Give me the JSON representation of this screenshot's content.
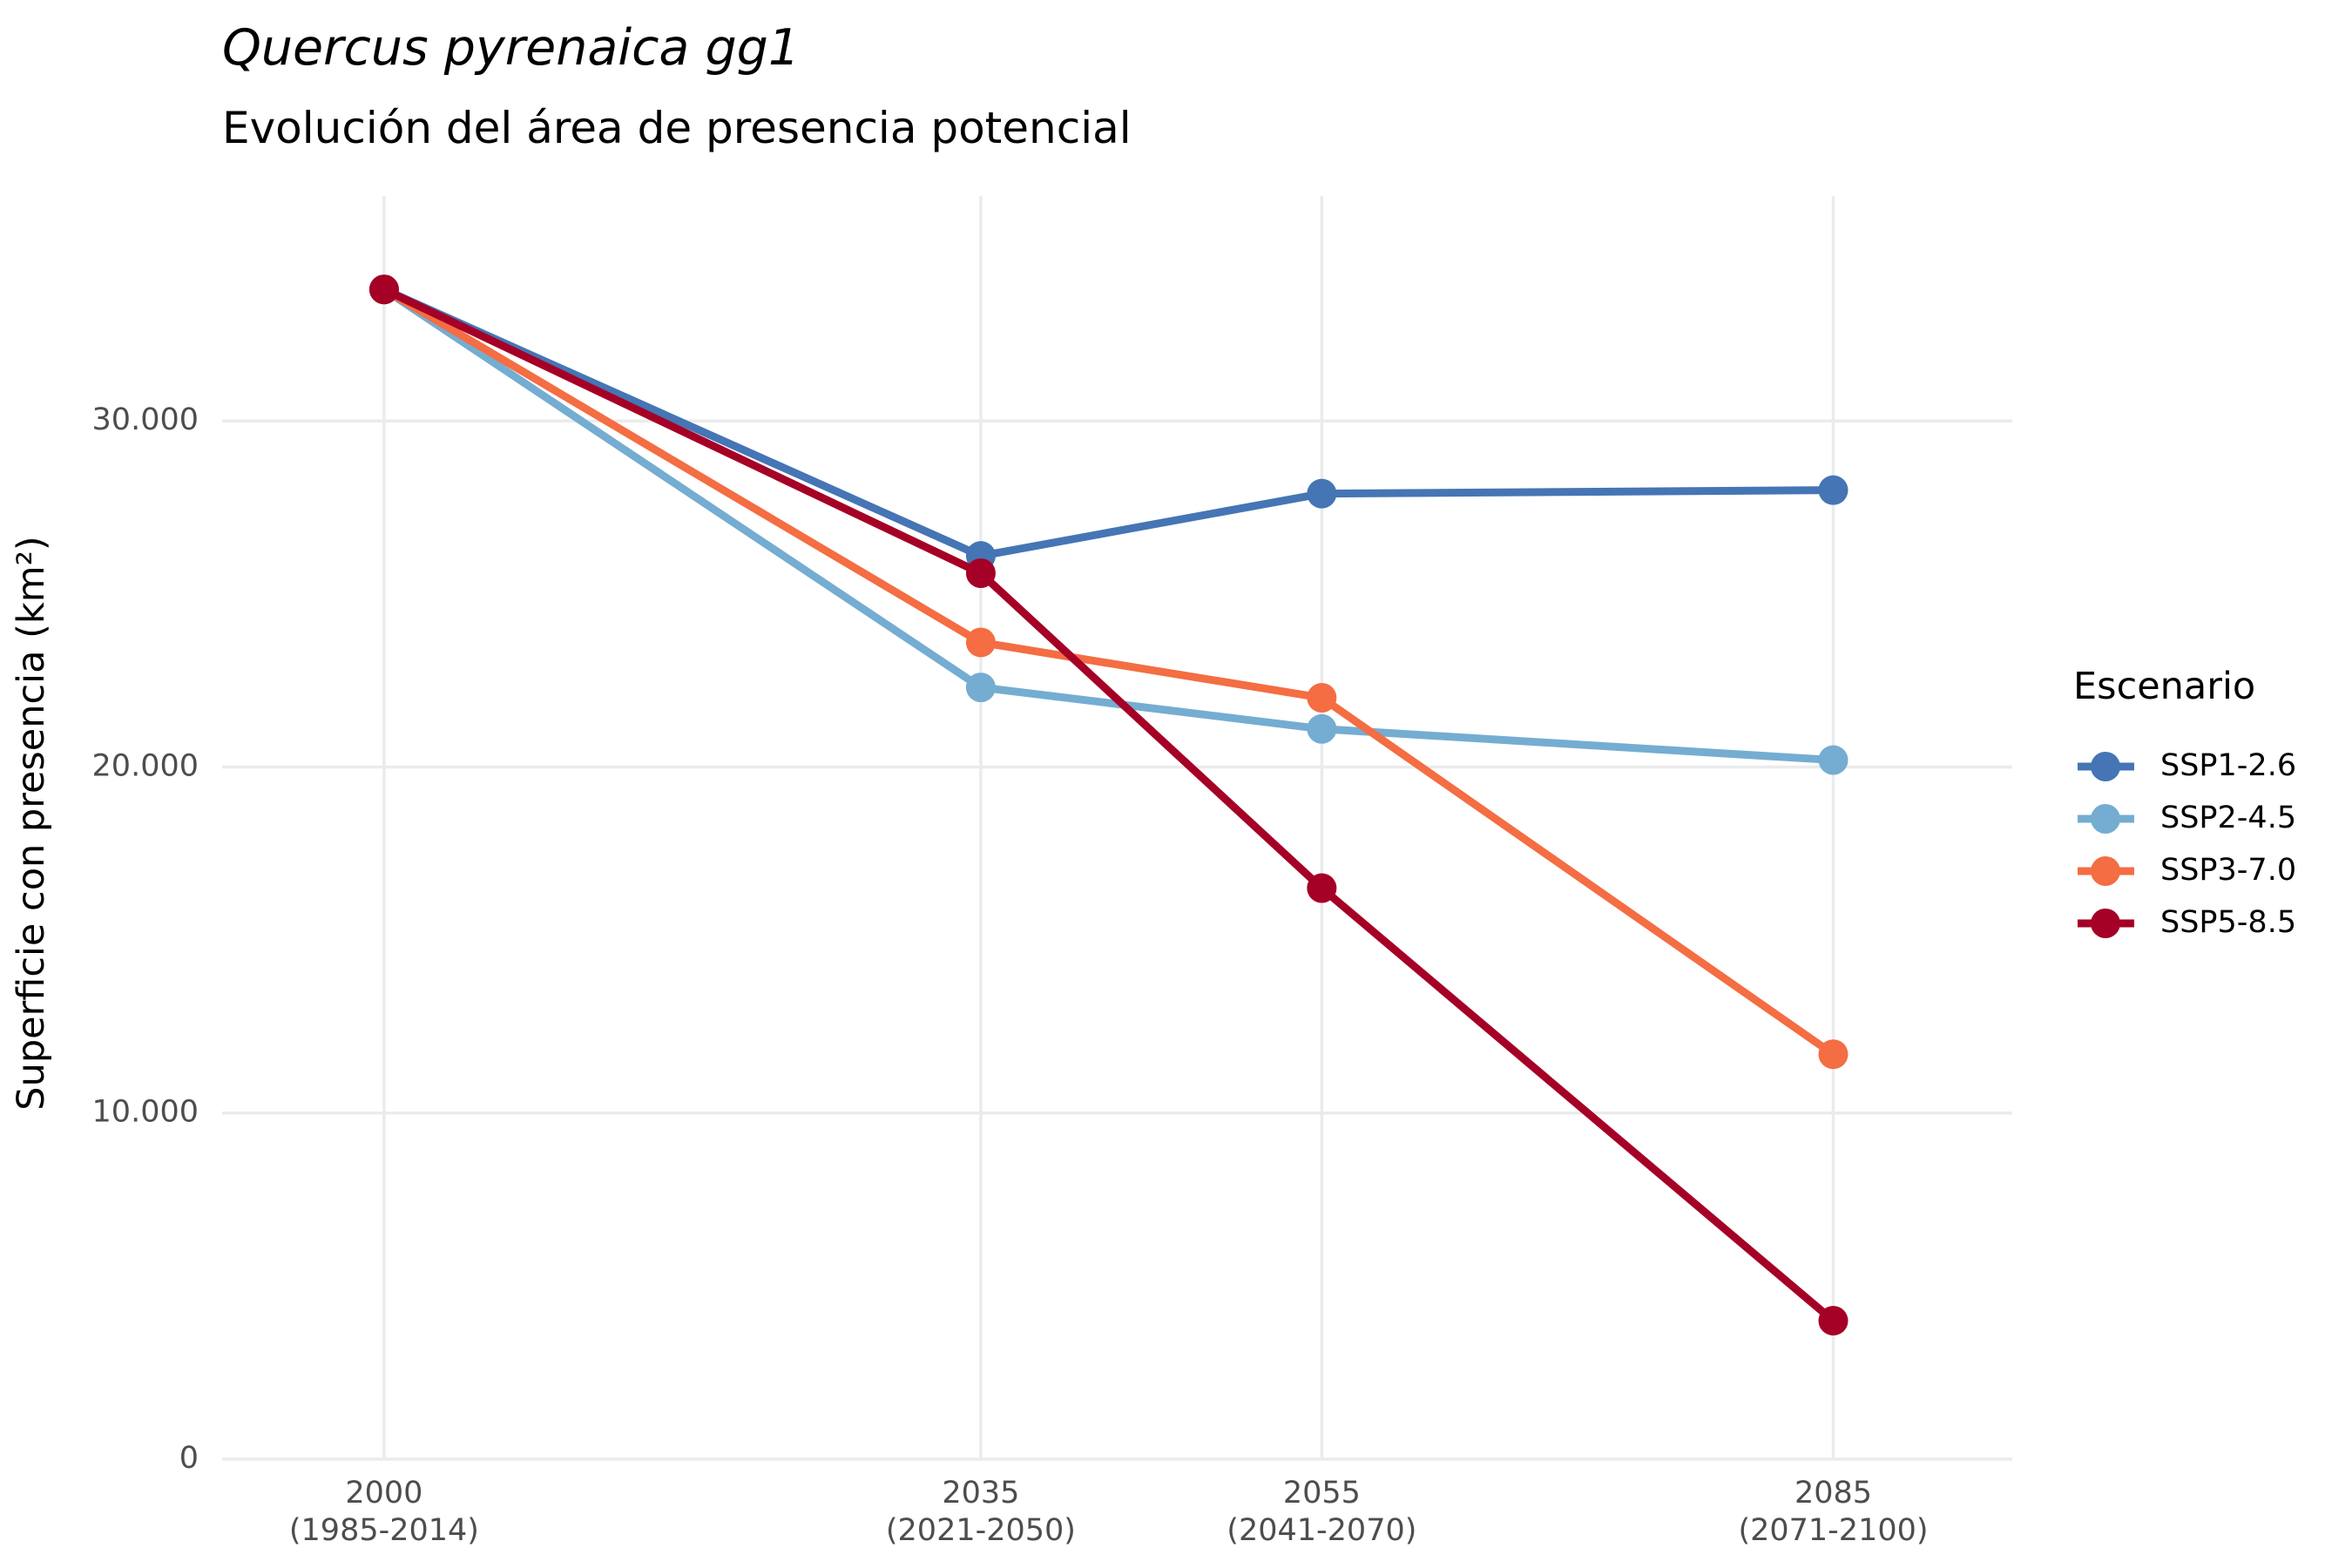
{
  "chart_data": {
    "type": "line",
    "title": "Quercus pyrenaica gg1",
    "subtitle": "Evolución del área de presencia potencial",
    "xlabel": "",
    "ylabel": "Superficie con presencia (km²)",
    "x": [
      2000,
      2035,
      2055,
      2085
    ],
    "x_tick_labels": [
      [
        "2000",
        "(1985-2014)"
      ],
      [
        "2035",
        "(2021-2050)"
      ],
      [
        "2055",
        "(2041-2070)"
      ],
      [
        "2085",
        "(2071-2100)"
      ]
    ],
    "xlim": [
      1990.5,
      2095.5
    ],
    "ylim": [
      0,
      36500
    ],
    "y_ticks": [
      0,
      10000,
      20000,
      30000
    ],
    "y_tick_labels": [
      "0",
      "10.000",
      "20.000",
      "30.000"
    ],
    "grid": true,
    "legend": {
      "title": "Escenario",
      "position": "right"
    },
    "series": [
      {
        "name": "SSP1-2.6",
        "color": "#4575b4",
        "values": [
          33800,
          26100,
          27900,
          28000
        ]
      },
      {
        "name": "SSP2-4.5",
        "color": "#74add1",
        "values": [
          33800,
          22300,
          21100,
          20200
        ]
      },
      {
        "name": "SSP3-7.0",
        "color": "#f46d43",
        "values": [
          33800,
          23600,
          22000,
          11700
        ]
      },
      {
        "name": "SSP5-8.5",
        "color": "#a50026",
        "values": [
          33800,
          25600,
          16500,
          4000
        ]
      }
    ]
  }
}
